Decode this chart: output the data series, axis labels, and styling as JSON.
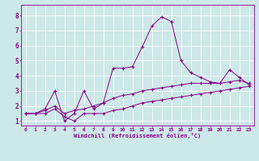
{
  "title": "",
  "xlabel": "Windchill (Refroidissement éolien,°C)",
  "ylabel": "",
  "background_color": "#cde8e8",
  "line_color": "#880088",
  "xlim": [
    -0.5,
    23.5
  ],
  "ylim": [
    0.7,
    8.7
  ],
  "xticks": [
    0,
    1,
    2,
    3,
    4,
    5,
    6,
    7,
    8,
    9,
    10,
    11,
    12,
    13,
    14,
    15,
    16,
    17,
    18,
    19,
    20,
    21,
    22,
    23
  ],
  "yticks": [
    1,
    2,
    3,
    4,
    5,
    6,
    7,
    8
  ],
  "series1_x": [
    0,
    1,
    2,
    3,
    4,
    5,
    6,
    7,
    8,
    9,
    10,
    11,
    12,
    13,
    14,
    15,
    16,
    17,
    18,
    19,
    20,
    21,
    22,
    23
  ],
  "series1_y": [
    1.5,
    1.5,
    1.5,
    1.8,
    1.3,
    1.0,
    1.5,
    1.5,
    1.5,
    1.7,
    1.8,
    2.0,
    2.2,
    2.3,
    2.4,
    2.5,
    2.6,
    2.7,
    2.8,
    2.9,
    3.0,
    3.1,
    3.2,
    3.3
  ],
  "series2_x": [
    0,
    1,
    2,
    3,
    4,
    5,
    6,
    7,
    8,
    9,
    10,
    11,
    12,
    13,
    14,
    15,
    16,
    17,
    18,
    19,
    20,
    21,
    22,
    23
  ],
  "series2_y": [
    1.5,
    1.5,
    1.8,
    3.0,
    1.0,
    1.5,
    3.0,
    1.8,
    2.2,
    4.5,
    4.5,
    4.6,
    5.9,
    7.3,
    7.9,
    7.6,
    5.0,
    4.2,
    3.9,
    3.6,
    3.5,
    4.4,
    3.9,
    3.4
  ],
  "series3_x": [
    0,
    1,
    2,
    3,
    4,
    5,
    6,
    7,
    8,
    9,
    10,
    11,
    12,
    13,
    14,
    15,
    16,
    17,
    18,
    19,
    20,
    21,
    22,
    23
  ],
  "series3_y": [
    1.5,
    1.5,
    1.7,
    2.0,
    1.5,
    1.7,
    1.8,
    2.0,
    2.2,
    2.5,
    2.7,
    2.8,
    3.0,
    3.1,
    3.2,
    3.3,
    3.4,
    3.5,
    3.5,
    3.5,
    3.5,
    3.6,
    3.7,
    3.5
  ]
}
